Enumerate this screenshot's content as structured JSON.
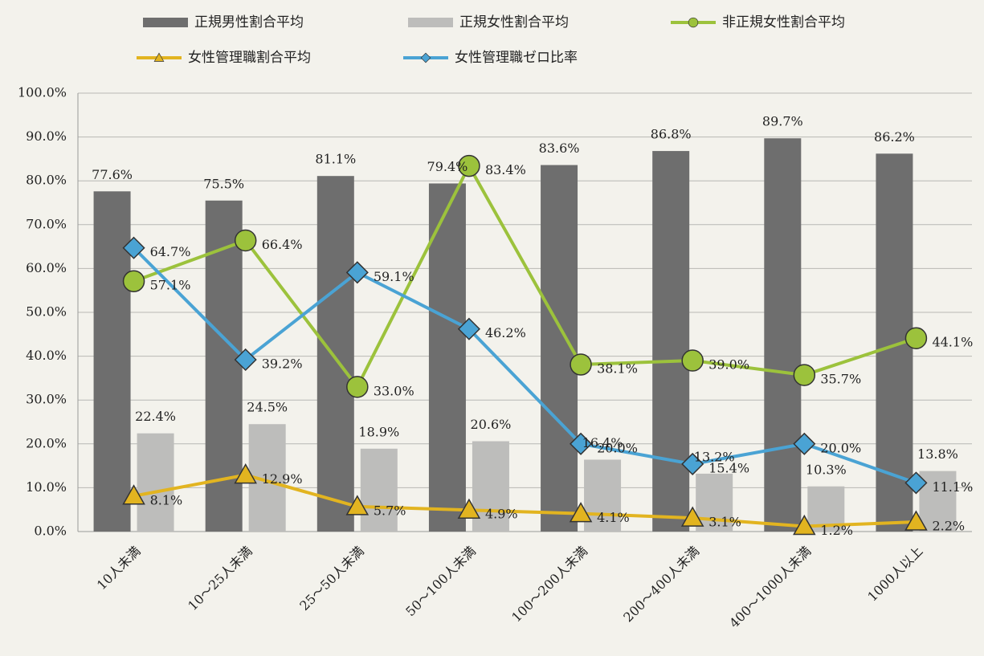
{
  "chart_data": {
    "type": "bar",
    "categories": [
      "10人未満",
      "10～25人未満",
      "25～50人未満",
      "50～100人未満",
      "100～200人未満",
      "200～400人未満",
      "400～1000人未満",
      "1000人以上"
    ],
    "series": [
      {
        "name": "正規男性割合平均",
        "type": "bar",
        "color": "#6e6e6e",
        "values": [
          77.6,
          75.5,
          81.1,
          79.4,
          83.6,
          86.8,
          89.7,
          86.2
        ],
        "value_labels": [
          "77.6%",
          "75.5%",
          "81.1%",
          "79.4%",
          "83.6%",
          "86.8%",
          "89.7%",
          "86.2%"
        ]
      },
      {
        "name": "正規女性割合平均",
        "type": "bar",
        "color": "#bdbdbb",
        "values": [
          22.4,
          24.5,
          18.9,
          20.6,
          16.4,
          13.2,
          10.3,
          13.8
        ],
        "value_labels": [
          "22.4%",
          "24.5%",
          "18.9%",
          "20.6%",
          "16.4%",
          "13.2%",
          "10.3%",
          "13.8%"
        ]
      },
      {
        "name": "非正規女性割合平均",
        "type": "line",
        "marker": "circle",
        "color": "#9cc23c",
        "values": [
          57.1,
          66.4,
          33.0,
          83.4,
          38.1,
          39.0,
          35.7,
          44.1
        ],
        "value_labels": [
          "57.1%",
          "66.4%",
          "33.0%",
          "83.4%",
          "38.1%",
          "39.0%",
          "35.7%",
          "44.1%"
        ]
      },
      {
        "name": "女性管理職割合平均",
        "type": "line",
        "marker": "triangle",
        "color": "#e2b420",
        "values": [
          8.1,
          12.9,
          5.7,
          4.9,
          4.1,
          3.1,
          1.2,
          2.2
        ],
        "value_labels": [
          "8.1%",
          "12.9%",
          "5.7%",
          "4.9%",
          "4.1%",
          "3.1%",
          "1.2%",
          "2.2%"
        ]
      },
      {
        "name": "女性管理職ゼロ比率",
        "type": "line",
        "marker": "diamond",
        "color": "#4aa3d4",
        "values": [
          64.7,
          39.2,
          59.1,
          46.2,
          20.0,
          15.4,
          20.0,
          11.1
        ],
        "value_labels": [
          "64.7%",
          "39.2%",
          "59.1%",
          "46.2%",
          "20.0%",
          "15.4%",
          "20.0%",
          "11.1%"
        ]
      }
    ],
    "ylim": [
      0,
      100
    ],
    "yticks": [
      {
        "value": 0,
        "label": "0.0%"
      },
      {
        "value": 10,
        "label": "10.0%"
      },
      {
        "value": 20,
        "label": "20.0%"
      },
      {
        "value": 30,
        "label": "30.0%"
      },
      {
        "value": 40,
        "label": "40.0%"
      },
      {
        "value": 50,
        "label": "50.0%"
      },
      {
        "value": 60,
        "label": "60.0%"
      },
      {
        "value": 70,
        "label": "70.0%"
      },
      {
        "value": 80,
        "label": "80.0%"
      },
      {
        "value": 90,
        "label": "90.0%"
      },
      {
        "value": 100,
        "label": "100.0%"
      }
    ],
    "grid": true
  }
}
